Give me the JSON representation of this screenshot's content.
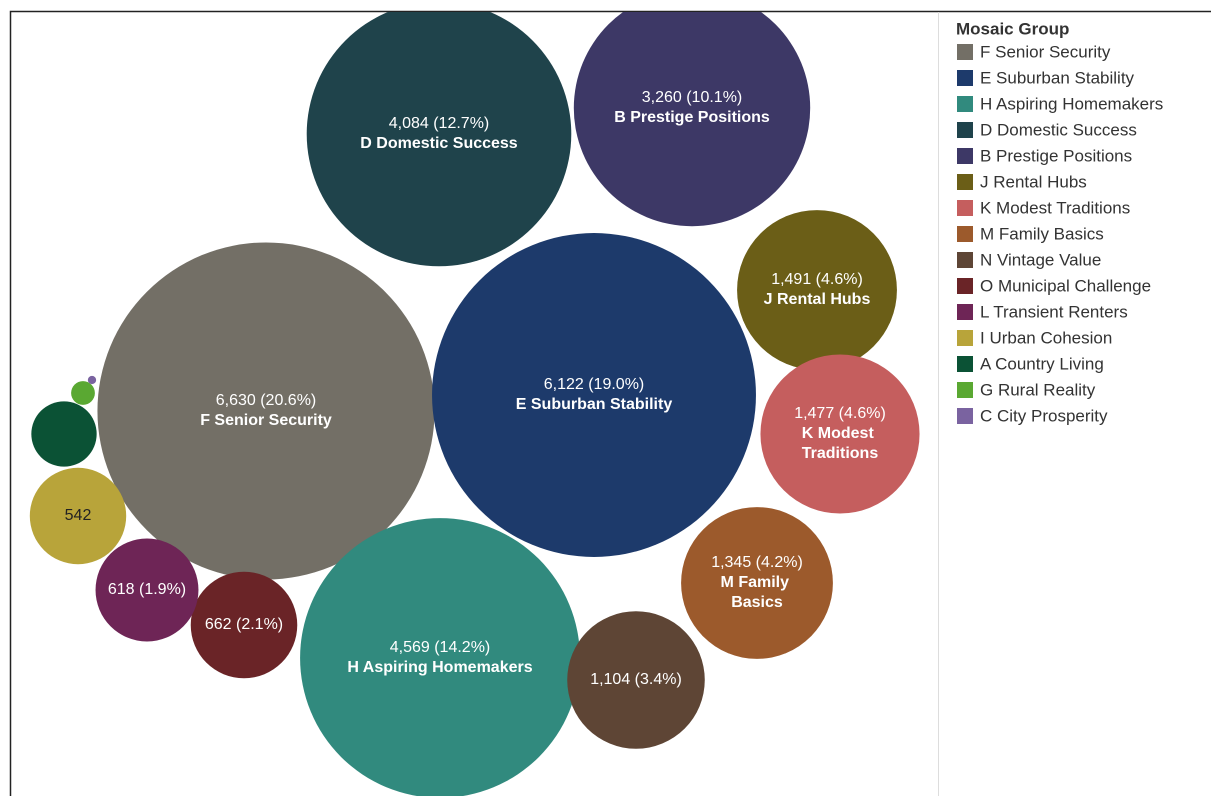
{
  "chart_data": {
    "type": "bubble",
    "legend_title": "Mosaic Group",
    "categories": [
      "F Senior Security",
      "E Suburban Stability",
      "H Aspiring Homemakers",
      "D Domestic Success",
      "B Prestige Positions",
      "J Rental Hubs",
      "K Modest Traditions",
      "M Family Basics",
      "N Vintage Value",
      "O Municipal Challenge",
      "L Transient Renters",
      "I Urban Cohesion",
      "A Country Living",
      "G Rural Reality",
      "C City Prosperity"
    ],
    "values": [
      6630,
      6122,
      4569,
      4084,
      3260,
      1491,
      1477,
      1345,
      1104,
      662,
      618,
      542,
      249,
      33,
      4
    ],
    "value_labels": [
      "6,630 (20.6%)",
      "6,122 (19.0%)",
      "4,569 (14.2%)",
      "4,084 (12.7%)",
      "3,260 (10.1%)",
      "1,491 (4.6%)",
      "1,477 (4.6%)",
      "1,345 (4.2%)",
      "1,104 (3.4%)",
      "662 (2.1%)",
      "618 (1.9%)",
      "542",
      null,
      null,
      null
    ],
    "colors": [
      "#736f66",
      "#1d3a6b",
      "#318a7e",
      "#1f434b",
      "#3d3866",
      "#6b5e17",
      "#c55e5e",
      "#9c5a2c",
      "#5e4535",
      "#6a2427",
      "#6e2556",
      "#b8a43a",
      "#0b5235",
      "#5aa832",
      "#7a63a0"
    ],
    "legend": "right"
  }
}
